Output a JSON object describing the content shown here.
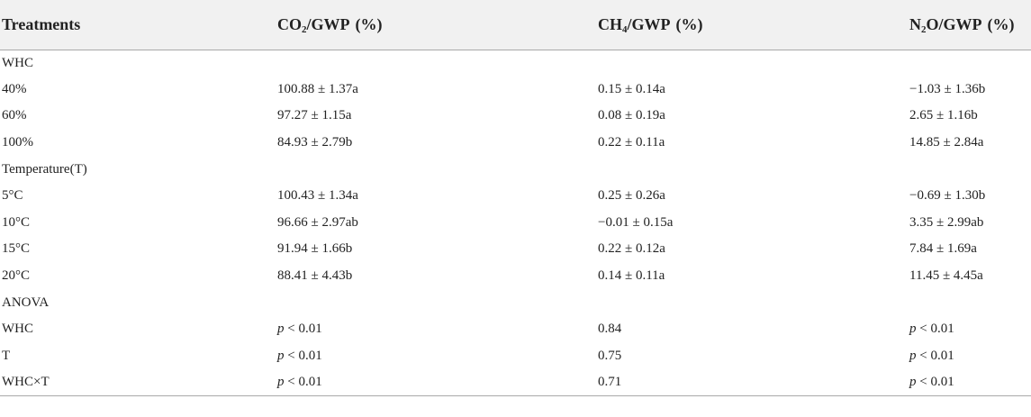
{
  "header": {
    "col1": "Treatments",
    "col2": {
      "pre": "CO",
      "sub": "2",
      "post": "/GWP",
      "unit": "(%)"
    },
    "col3": {
      "pre": "CH",
      "sub": "4",
      "post": "/GWP",
      "unit": "(%)"
    },
    "col4": {
      "pre": "N",
      "sub": "2",
      "post": "O/GWP",
      "unit": "(%)"
    }
  },
  "rows": [
    {
      "label": "WHC",
      "co2": "",
      "ch4": "",
      "n2o": ""
    },
    {
      "label": "40%",
      "co2": "100.88 ± 1.37a",
      "ch4": "0.15 ± 0.14a",
      "n2o": "−1.03 ± 1.36b"
    },
    {
      "label": "60%",
      "co2": "97.27 ± 1.15a",
      "ch4": "0.08 ± 0.19a",
      "n2o": "2.65 ± 1.16b"
    },
    {
      "label": "100%",
      "co2": "84.93 ± 2.79b",
      "ch4": "0.22 ± 0.11a",
      "n2o": "14.85 ± 2.84a"
    },
    {
      "label": "Temperature(T)",
      "co2": "",
      "ch4": "",
      "n2o": ""
    },
    {
      "label": "5°C",
      "co2": "100.43 ± 1.34a",
      "ch4": "0.25 ± 0.26a",
      "n2o": "−0.69 ± 1.30b"
    },
    {
      "label": "10°C",
      "co2": "96.66 ± 2.97ab",
      "ch4": "−0.01 ± 0.15a",
      "n2o": "3.35 ± 2.99ab"
    },
    {
      "label": "15°C",
      "co2": "91.94 ± 1.66b",
      "ch4": "0.22 ± 0.12a",
      "n2o": "7.84 ± 1.69a"
    },
    {
      "label": "20°C",
      "co2": "88.41 ± 4.43b",
      "ch4": "0.14 ± 0.11a",
      "n2o": "11.45 ± 4.45a"
    },
    {
      "label": "ANOVA",
      "co2": "",
      "ch4": "",
      "n2o": ""
    },
    {
      "label": "WHC",
      "co2": {
        "p": "p",
        "rest": " < 0.01"
      },
      "ch4": "0.84",
      "n2o": {
        "p": "p",
        "rest": " < 0.01"
      }
    },
    {
      "label": "T",
      "co2": {
        "p": "p",
        "rest": " < 0.01"
      },
      "ch4": "0.75",
      "n2o": {
        "p": "p",
        "rest": " < 0.01"
      }
    },
    {
      "label": "WHC×T",
      "co2": {
        "p": "p",
        "rest": " < 0.01"
      },
      "ch4": "0.71",
      "n2o": {
        "p": "p",
        "rest": " < 0.01"
      }
    }
  ]
}
